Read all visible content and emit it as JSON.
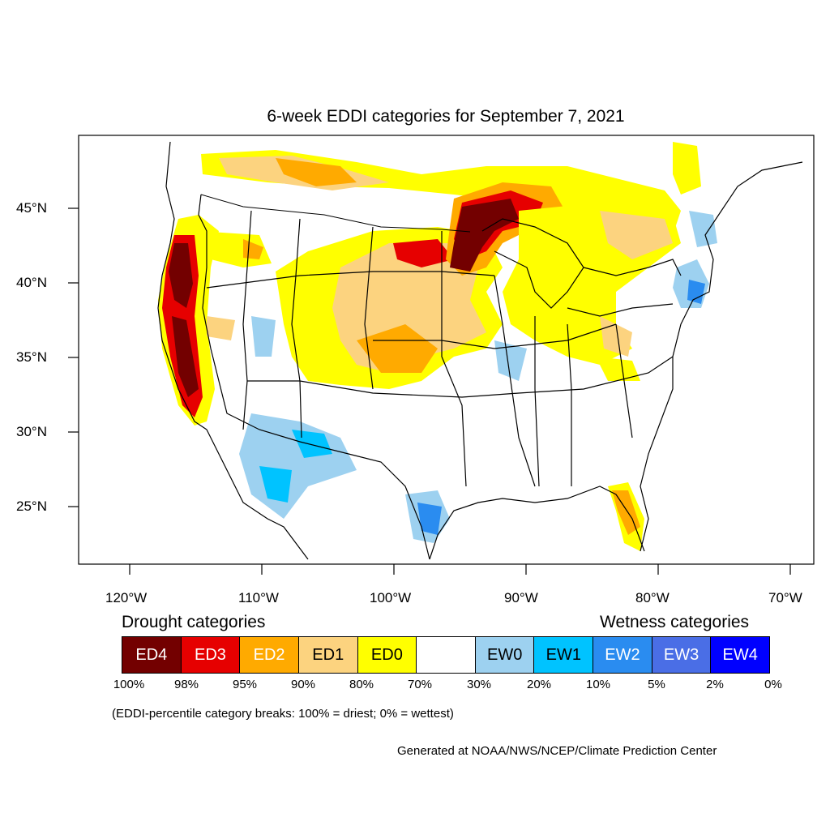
{
  "title": "6-week EDDI categories for September 7, 2021",
  "lat_labels": [
    "45°N",
    "40°N",
    "35°N",
    "30°N",
    "25°N"
  ],
  "lon_labels": [
    "120°W",
    "110°W",
    "100°W",
    "90°W",
    "80°W",
    "70°W"
  ],
  "drought_heading": "Drought categories",
  "wetness_heading": "Wetness categories",
  "legend": [
    {
      "label": "ED4",
      "color": "#730000",
      "text_color": "#ffffff"
    },
    {
      "label": "ED3",
      "color": "#e60000",
      "text_color": "#ffffff"
    },
    {
      "label": "ED2",
      "color": "#ffaa00",
      "text_color": "#ffffff"
    },
    {
      "label": "ED1",
      "color": "#fcd37f",
      "text_color": "#000000"
    },
    {
      "label": "ED0",
      "color": "#ffff00",
      "text_color": "#000000"
    },
    {
      "label": "",
      "color": "#ffffff",
      "text_color": "#000000"
    },
    {
      "label": "EW0",
      "color": "#9dd1f0",
      "text_color": "#000000"
    },
    {
      "label": "EW1",
      "color": "#00c3ff",
      "text_color": "#000000"
    },
    {
      "label": "EW2",
      "color": "#2a8cf0",
      "text_color": "#ffffff"
    },
    {
      "label": "EW3",
      "color": "#4a6ee6",
      "text_color": "#ffffff"
    },
    {
      "label": "EW4",
      "color": "#0000ff",
      "text_color": "#ffffff"
    }
  ],
  "percent_breaks": [
    "100%",
    "98%",
    "95%",
    "90%",
    "80%",
    "70%",
    "30%",
    "20%",
    "10%",
    "5%",
    "2%",
    "0%"
  ],
  "note": "(EDDI-percentile category breaks: 100% = driest; 0% = wettest)",
  "credit": "Generated at NOAA/NWS/NCEP/Climate Prediction Center"
}
